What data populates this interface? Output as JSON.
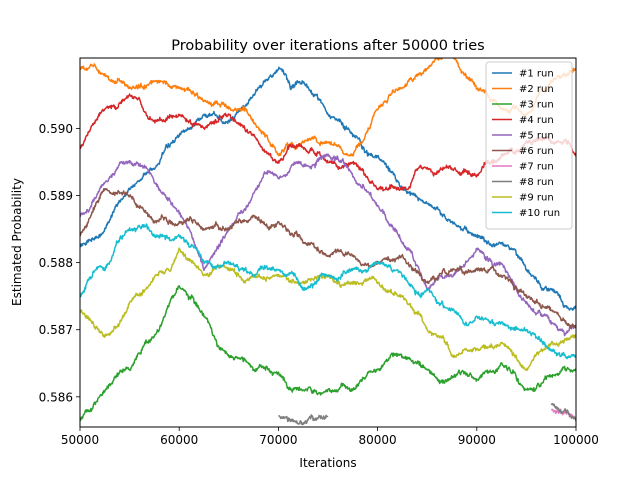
{
  "chart_data": {
    "type": "line",
    "title": "Probability over iterations after 50000 tries",
    "xlabel": "Iterations",
    "ylabel": "Estimated Probability",
    "xlim": [
      50000,
      100000
    ],
    "ylim": [
      0.58555,
      0.59105
    ],
    "xticks": [
      50000,
      60000,
      70000,
      80000,
      90000,
      100000
    ],
    "xtick_labels": [
      "50000",
      "60000",
      "70000",
      "80000",
      "90000",
      "100000"
    ],
    "yticks": [
      0.586,
      0.587,
      0.588,
      0.589,
      0.59
    ],
    "ytick_labels": [
      "0.586",
      "0.587",
      "0.588",
      "0.589",
      "0.590"
    ],
    "grid": false,
    "legend_position": "top-right",
    "x": [
      50000,
      52500,
      55000,
      57500,
      60000,
      62500,
      65000,
      67500,
      70000,
      72500,
      75000,
      77500,
      80000,
      82500,
      85000,
      87500,
      90000,
      92500,
      95000,
      97500,
      100000
    ],
    "series": [
      {
        "name": "#1 run",
        "color": "#1f77b4",
        "values": [
          0.58825,
          0.5885,
          0.5891,
          0.5894,
          0.5899,
          0.5902,
          0.5901,
          0.5905,
          0.5909,
          0.5907,
          0.5902,
          0.5899,
          0.5896,
          0.5891,
          0.5889,
          0.5886,
          0.5884,
          0.5883,
          0.5879,
          0.5876,
          0.58735
        ]
      },
      {
        "name": "#2 run",
        "color": "#ff7f0e",
        "values": [
          0.5909,
          0.5908,
          0.5906,
          0.5907,
          0.5906,
          0.5904,
          0.5903,
          0.5901,
          0.5896,
          0.5898,
          0.5898,
          0.5896,
          0.5903,
          0.5906,
          0.5909,
          0.5911,
          0.5906,
          0.5903,
          0.5902,
          0.5907,
          0.5909
        ]
      },
      {
        "name": "#3 run",
        "color": "#2ca02c",
        "values": [
          0.58565,
          0.5861,
          0.5864,
          0.5869,
          0.58765,
          0.5872,
          0.5866,
          0.5864,
          0.58635,
          0.5861,
          0.5861,
          0.5861,
          0.5864,
          0.5866,
          0.5864,
          0.5863,
          0.58625,
          0.5865,
          0.5861,
          0.5863,
          0.5864
        ]
      },
      {
        "name": "#4 run",
        "color": "#d62728",
        "values": [
          0.5897,
          0.5903,
          0.5905,
          0.5901,
          0.5902,
          0.59,
          0.5902,
          0.5899,
          0.5895,
          0.5897,
          0.5895,
          0.5895,
          0.5891,
          0.5891,
          0.5894,
          0.5894,
          0.5893,
          0.5896,
          0.5898,
          0.5898,
          0.5896
        ]
      },
      {
        "name": "#5 run",
        "color": "#9467bd",
        "values": [
          0.5887,
          0.5892,
          0.5895,
          0.5892,
          0.58875,
          0.5879,
          0.5885,
          0.58905,
          0.58925,
          0.58945,
          0.5896,
          0.5893,
          0.58885,
          0.5883,
          0.5876,
          0.5878,
          0.5882,
          0.588,
          0.5874,
          0.5871,
          0.58705
        ]
      },
      {
        "name": "#6 run",
        "color": "#8c564b",
        "values": [
          0.5884,
          0.5891,
          0.589,
          0.5886,
          0.5886,
          0.5885,
          0.5885,
          0.5887,
          0.5886,
          0.5883,
          0.5881,
          0.5881,
          0.588,
          0.5881,
          0.5877,
          0.5879,
          0.5879,
          0.5878,
          0.5875,
          0.5873,
          0.58705
        ]
      },
      {
        "name": "#7 run",
        "color": "#e377c2",
        "values": [
          null,
          null,
          null,
          null,
          null,
          null,
          null,
          null,
          null,
          null,
          null,
          null,
          null,
          null,
          null,
          null,
          null,
          null,
          null,
          0.5858,
          0.5857
        ]
      },
      {
        "name": "#8 run",
        "color": "#7f7f7f",
        "values": [
          null,
          null,
          null,
          null,
          null,
          null,
          null,
          null,
          0.5857,
          0.5856,
          0.5857,
          null,
          null,
          0.5857,
          null,
          null,
          null,
          null,
          null,
          0.5859,
          0.58565
        ]
      },
      {
        "name": "#9 run",
        "color": "#bcbd22",
        "values": [
          0.5873,
          0.5869,
          0.5874,
          0.5878,
          0.5882,
          0.5878,
          0.5879,
          0.5878,
          0.5878,
          0.5877,
          0.5878,
          0.5877,
          0.5877,
          0.5875,
          0.587,
          0.5866,
          0.5867,
          0.5868,
          0.5864,
          0.5868,
          0.5869
        ]
      },
      {
        "name": "#10 run",
        "color": "#17becf",
        "values": [
          0.5875,
          0.5879,
          0.5885,
          0.5884,
          0.5884,
          0.588,
          0.588,
          0.5878,
          0.5879,
          0.5876,
          0.5878,
          0.5879,
          0.588,
          0.5878,
          0.5876,
          0.5873,
          0.5872,
          0.5871,
          0.587,
          0.5867,
          0.5866
        ]
      }
    ]
  }
}
